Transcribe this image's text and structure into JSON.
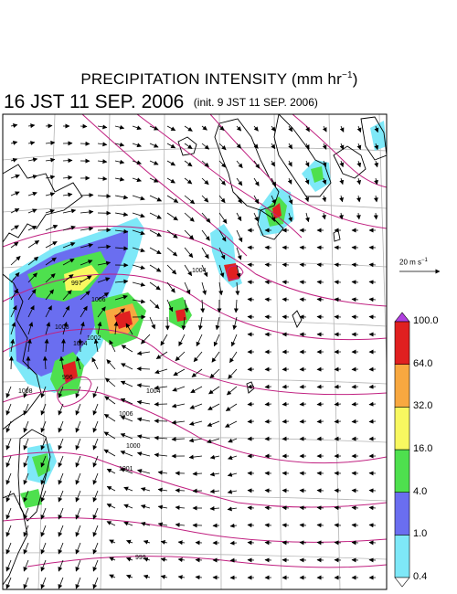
{
  "header": {
    "title_text": "PRECIPITATION INTENSITY (mm hr",
    "title_sup": "−1",
    "title_close": ")",
    "valid_time": "16 JST 11 SEP. 2006",
    "init_time": "(init. 9 JST 11 SEP. 2006)"
  },
  "wind_reference": {
    "label": "20 m s",
    "label_sup": "−1",
    "speed_ms": 20
  },
  "colorbar": {
    "units": "mm hr-1",
    "levels": [
      "0.4",
      "1.0",
      "4.0",
      "16.0",
      "32.0",
      "64.0",
      "100.0"
    ],
    "colors": [
      "#7ee8f8",
      "#6a6ef0",
      "#4ee04e",
      "#f8f860",
      "#f8a840",
      "#e02020"
    ],
    "underflow_color": "#ffffff",
    "overflow_color": "#b040e0"
  },
  "isobars": {
    "color": "#c02080",
    "labels": [
      "1002",
      "1004",
      "1004",
      "1006",
      "1006",
      "1008",
      "1008",
      "1000",
      "997",
      "999",
      "1001",
      "1004",
      "996"
    ]
  },
  "map": {
    "coastline_color": "#000000",
    "grid_color": "#b0b0b0",
    "wind_vector_color": "#000000"
  }
}
